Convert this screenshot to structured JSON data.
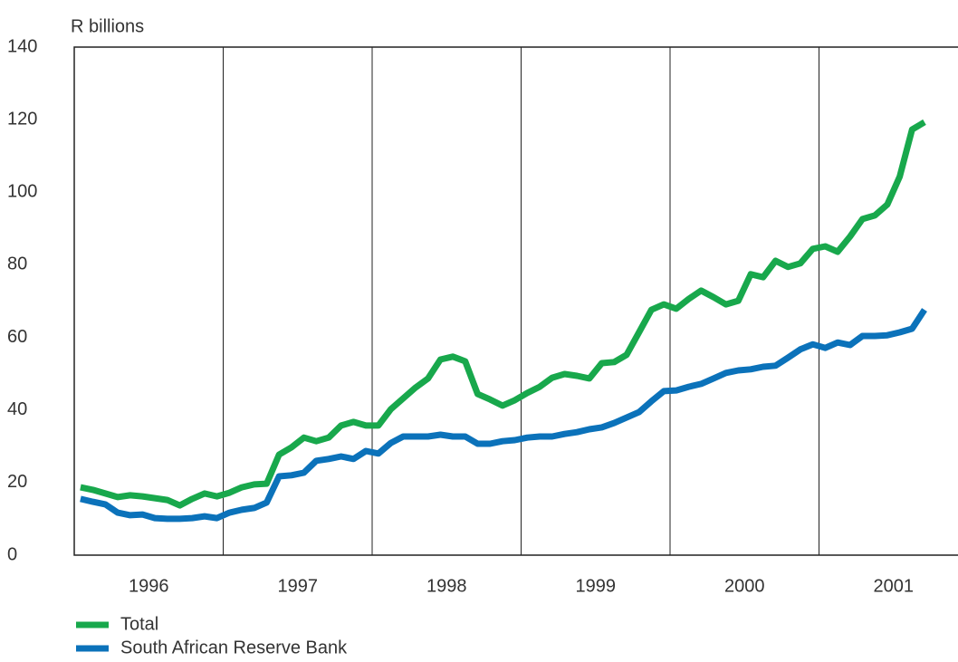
{
  "chart_data": {
    "type": "line",
    "y_label": "R billions",
    "categories": [
      null,
      null,
      null,
      null,
      null,
      null,
      "1996",
      null,
      null,
      null,
      null,
      null,
      null,
      null,
      null,
      null,
      null,
      null,
      "1997",
      null,
      null,
      null,
      null,
      null,
      null,
      null,
      null,
      null,
      null,
      null,
      "1998",
      null,
      null,
      null,
      null,
      null,
      null,
      null,
      null,
      null,
      null,
      null,
      "1999",
      null,
      null,
      null,
      null,
      null,
      null,
      null,
      null,
      null,
      null,
      null,
      "2000",
      null,
      null,
      null,
      null,
      null,
      null,
      null,
      null,
      null,
      null,
      null,
      "2001",
      null,
      null
    ],
    "series": [
      {
        "name": "Total",
        "color": "#18a84c",
        "values": [
          18.7,
          18,
          17,
          16,
          16.5,
          16.2,
          15.7,
          15.2,
          13.7,
          15.5,
          17,
          16.2,
          17.2,
          18.7,
          19.5,
          19.7,
          27.7,
          29.7,
          32.4,
          31.4,
          32.4,
          35.7,
          36.7,
          35.7,
          35.7,
          40.2,
          43.2,
          46.2,
          48.7,
          53.9,
          54.7,
          53.4,
          44.4,
          42.9,
          41.2,
          42.7,
          44.7,
          46.4,
          48.9,
          49.9,
          49.4,
          48.7,
          52.9,
          53.2,
          55.2,
          61.4,
          67.6,
          69.1,
          67.9,
          70.6,
          72.9,
          71.1,
          69.1,
          70.1,
          77.4,
          76.6,
          81.1,
          79.4,
          80.4,
          84.4,
          85.1,
          83.6,
          87.8,
          92.6,
          93.6,
          96.6,
          104.3,
          117.3,
          119.3
        ]
      },
      {
        "name": "South African Reserve Bank",
        "color": "#0b72ba",
        "values": [
          15.5,
          14.7,
          14,
          11.7,
          11,
          11.2,
          10.2,
          10,
          10,
          10.2,
          10.7,
          10.2,
          11.7,
          12.5,
          13,
          14.5,
          21.7,
          22,
          22.7,
          26,
          26.5,
          27.2,
          26.5,
          28.7,
          28,
          30.9,
          32.7,
          32.7,
          32.7,
          33.2,
          32.7,
          32.7,
          30.7,
          30.7,
          31.4,
          31.7,
          32.4,
          32.7,
          32.7,
          33.4,
          33.9,
          34.7,
          35.2,
          36.4,
          37.9,
          39.4,
          42.4,
          45.2,
          45.4,
          46.4,
          47.2,
          48.7,
          50.2,
          50.9,
          51.2,
          51.9,
          52.2,
          54.4,
          56.7,
          58.1,
          57.1,
          58.6,
          57.9,
          60.4,
          60.4,
          60.6,
          61.4,
          62.4,
          67.6
        ]
      }
    ],
    "ylim": [
      0,
      140
    ],
    "yticks": [
      0,
      20,
      40,
      60,
      80,
      100,
      120,
      140
    ],
    "grid": false
  }
}
